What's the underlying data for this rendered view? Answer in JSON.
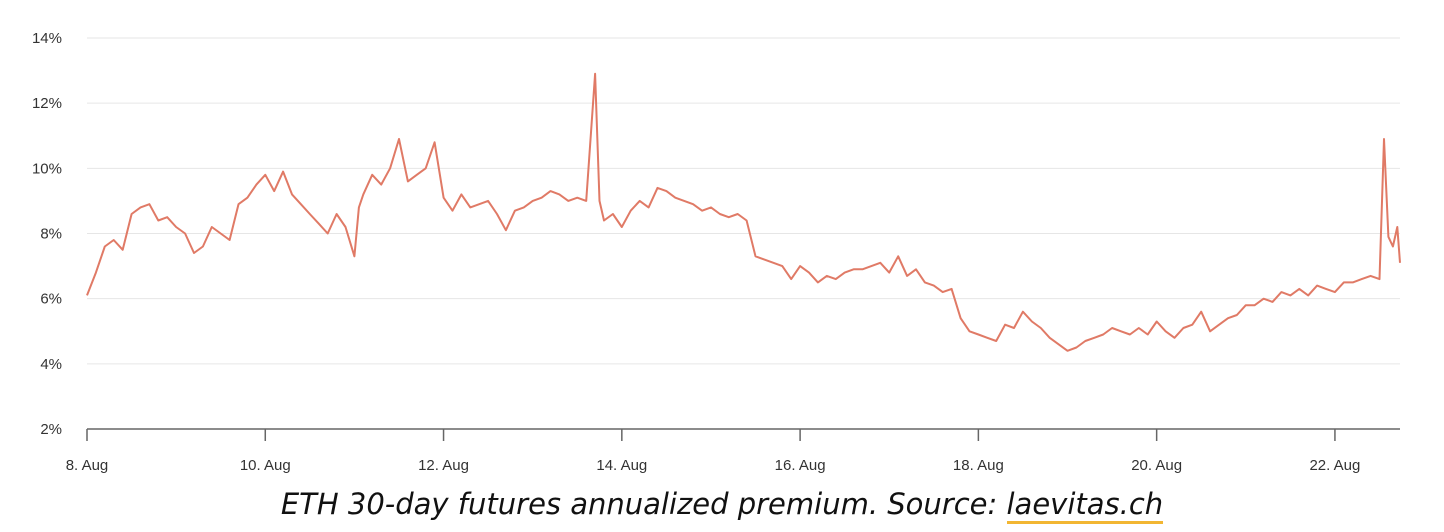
{
  "chart_data": {
    "type": "line",
    "title": "",
    "xlabel": "",
    "ylabel": "",
    "x_ticks": [
      "8. Aug",
      "10. Aug",
      "12. Aug",
      "14. Aug",
      "16. Aug",
      "18. Aug",
      "20. Aug",
      "22. Aug"
    ],
    "y_ticks": [
      "2%",
      "4%",
      "6%",
      "8%",
      "10%",
      "12%",
      "14%"
    ],
    "ylim": [
      2,
      14
    ],
    "xlim_days": [
      8,
      22.73
    ],
    "grid": true,
    "line_color": "#e07a66",
    "series": [
      {
        "x": [
          8.0,
          8.1,
          8.2,
          8.3,
          8.4,
          8.5,
          8.6,
          8.7,
          8.8,
          8.9,
          9.0,
          9.1,
          9.2,
          9.3,
          9.4,
          9.5,
          9.6,
          9.7,
          9.8,
          9.9,
          10.0,
          10.1,
          10.2,
          10.3,
          10.4,
          10.5,
          10.6,
          10.7,
          10.8,
          10.9,
          11.0,
          11.05,
          11.1,
          11.2,
          11.3,
          11.4,
          11.5,
          11.6,
          11.7,
          11.8,
          11.9,
          12.0,
          12.1,
          12.2,
          12.3,
          12.4,
          12.5,
          12.6,
          12.7,
          12.8,
          12.9,
          13.0,
          13.1,
          13.2,
          13.3,
          13.4,
          13.5,
          13.6,
          13.7,
          13.75,
          13.8,
          13.9,
          14.0,
          14.1,
          14.2,
          14.3,
          14.4,
          14.5,
          14.6,
          14.7,
          14.8,
          14.9,
          15.0,
          15.1,
          15.2,
          15.3,
          15.4,
          15.5,
          15.6,
          15.7,
          15.8,
          15.9,
          16.0,
          16.1,
          16.2,
          16.3,
          16.4,
          16.5,
          16.6,
          16.7,
          16.8,
          16.9,
          17.0,
          17.1,
          17.2,
          17.3,
          17.4,
          17.5,
          17.6,
          17.7,
          17.8,
          17.9,
          18.0,
          18.1,
          18.2,
          18.3,
          18.4,
          18.5,
          18.6,
          18.7,
          18.8,
          18.9,
          19.0,
          19.1,
          19.2,
          19.3,
          19.4,
          19.5,
          19.6,
          19.7,
          19.8,
          19.9,
          20.0,
          20.1,
          20.2,
          20.3,
          20.4,
          20.5,
          20.6,
          20.7,
          20.8,
          20.9,
          21.0,
          21.1,
          21.2,
          21.3,
          21.4,
          21.5,
          21.6,
          21.7,
          21.8,
          21.9,
          22.0,
          22.1,
          22.2,
          22.3,
          22.4,
          22.5,
          22.55,
          22.6,
          22.65,
          22.7,
          22.73
        ],
        "y": [
          6.1,
          6.8,
          7.6,
          7.8,
          7.5,
          8.6,
          8.8,
          8.9,
          8.4,
          8.5,
          8.2,
          8.0,
          7.4,
          7.6,
          8.2,
          8.0,
          7.8,
          8.9,
          9.1,
          9.5,
          9.8,
          9.3,
          9.9,
          9.2,
          8.9,
          8.6,
          8.3,
          8.0,
          8.6,
          8.2,
          7.3,
          8.8,
          9.2,
          9.8,
          9.5,
          10.0,
          10.9,
          9.6,
          9.8,
          10.0,
          10.8,
          9.1,
          8.7,
          9.2,
          8.8,
          8.9,
          9.0,
          8.6,
          8.1,
          8.7,
          8.8,
          9.0,
          9.1,
          9.3,
          9.2,
          9.0,
          9.1,
          9.0,
          12.9,
          9.0,
          8.4,
          8.6,
          8.2,
          8.7,
          9.0,
          8.8,
          9.4,
          9.3,
          9.1,
          9.0,
          8.9,
          8.7,
          8.8,
          8.6,
          8.5,
          8.6,
          8.4,
          7.3,
          7.2,
          7.1,
          7.0,
          6.6,
          7.0,
          6.8,
          6.5,
          6.7,
          6.6,
          6.8,
          6.9,
          6.9,
          7.0,
          7.1,
          6.8,
          7.3,
          6.7,
          6.9,
          6.5,
          6.4,
          6.2,
          6.3,
          5.4,
          5.0,
          4.9,
          4.8,
          4.7,
          5.2,
          5.1,
          5.6,
          5.3,
          5.1,
          4.8,
          4.6,
          4.4,
          4.5,
          4.7,
          4.8,
          4.9,
          5.1,
          5.0,
          4.9,
          5.1,
          4.9,
          5.3,
          5.0,
          4.8,
          5.1,
          5.2,
          5.6,
          5.0,
          5.2,
          5.4,
          5.5,
          5.8,
          5.8,
          6.0,
          5.9,
          6.2,
          6.1,
          6.3,
          6.1,
          6.4,
          6.3,
          6.2,
          6.5,
          6.5,
          6.6,
          6.7,
          6.6,
          10.9,
          7.9,
          7.6,
          8.2,
          7.1
        ]
      }
    ]
  },
  "caption": {
    "text": "ETH 30-day futures annualized premium. Source: ",
    "link_text": "laevitas.ch"
  }
}
